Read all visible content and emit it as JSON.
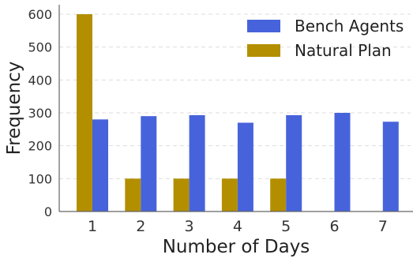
{
  "chart_data": {
    "type": "bar",
    "xlabel": "Number of Days",
    "ylabel": "Frequency",
    "categories": [
      "1",
      "2",
      "3",
      "4",
      "5",
      "6",
      "7"
    ],
    "series": [
      {
        "name": "Natural Plan",
        "color": "#B38F00",
        "values": [
          600,
          100,
          100,
          100,
          100,
          null,
          null
        ]
      },
      {
        "name": "Bench Agents",
        "color": "#4763DB",
        "values": [
          280,
          290,
          293,
          270,
          293,
          300,
          273
        ]
      }
    ],
    "ylim": [
      0,
      640
    ],
    "yticks": [
      0,
      100,
      200,
      300,
      400,
      500,
      600
    ],
    "grid": "horizontal dashed",
    "legend": "top-right",
    "legend_order": [
      "Bench Agents",
      "Natural Plan"
    ]
  }
}
